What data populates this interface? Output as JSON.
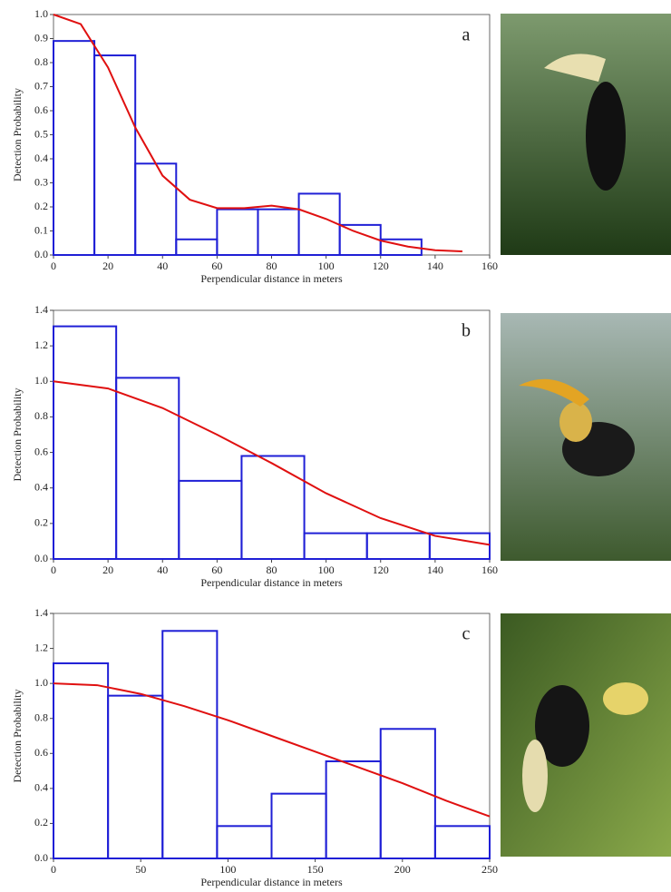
{
  "chart_data": [
    {
      "type": "histogram",
      "label": "a",
      "bins": [
        0,
        15,
        30,
        45,
        60,
        75,
        90,
        105,
        120,
        135,
        150
      ],
      "values": [
        0.89,
        0.83,
        0.38,
        0.065,
        0.19,
        0.19,
        0.255,
        0.125,
        0.065,
        0
      ],
      "color": "#1f1fd6",
      "line": {
        "x": [
          0,
          10,
          20,
          30,
          40,
          50,
          60,
          70,
          80,
          90,
          100,
          110,
          120,
          130,
          140,
          150
        ],
        "values": [
          1.0,
          0.96,
          0.78,
          0.53,
          0.33,
          0.23,
          0.195,
          0.195,
          0.205,
          0.19,
          0.15,
          0.1,
          0.06,
          0.035,
          0.02,
          0.015
        ],
        "color": "#e01010"
      },
      "xlim": [
        0,
        160
      ],
      "ylim": [
        0,
        1
      ],
      "xticks": [
        0,
        20,
        40,
        60,
        80,
        100,
        120,
        140,
        160
      ],
      "yticks": [
        {
          "value": 0,
          "label": "0.0"
        },
        0.1,
        0.2,
        0.3,
        0.4,
        0.5,
        0.6,
        0.7,
        0.8,
        0.9,
        {
          "value": 1,
          "label": "1.0"
        }
      ],
      "x_label": "Perpendicular distance in meters",
      "y_label": "Detection Probability"
    },
    {
      "type": "histogram",
      "label": "b",
      "bins": [
        0,
        23,
        46,
        69,
        92,
        115,
        138,
        160
      ],
      "values": [
        1.31,
        1.02,
        0.44,
        0.58,
        0.145,
        0.145,
        0.145
      ],
      "color": "#1f1fd6",
      "line": {
        "x": [
          0,
          20,
          40,
          60,
          80,
          100,
          120,
          140,
          160
        ],
        "values": [
          1.0,
          0.96,
          0.85,
          0.7,
          0.54,
          0.37,
          0.23,
          0.13,
          0.08
        ],
        "color": "#e01010"
      },
      "xlim": [
        0,
        160
      ],
      "ylim": [
        0,
        1.4
      ],
      "xticks": [
        0,
        20,
        40,
        60,
        80,
        100,
        120,
        140,
        160
      ],
      "yticks": [
        {
          "value": 0,
          "label": "0.0"
        },
        0.2,
        0.4,
        0.6,
        0.8,
        {
          "value": 1,
          "label": "1.0"
        },
        1.2,
        1.4
      ],
      "x_label": "Perpendicular distance in meters",
      "y_label": "Detection Probability"
    },
    {
      "type": "histogram",
      "label": "c",
      "bins": [
        0,
        31.25,
        62.5,
        93.75,
        125,
        156.25,
        187.5,
        218.75,
        250
      ],
      "values": [
        1.115,
        0.93,
        1.3,
        0.185,
        0.37,
        0.555,
        0.74,
        0.185
      ],
      "color": "#1f1fd6",
      "line": {
        "x": [
          0,
          25,
          50,
          75,
          100,
          125,
          150,
          175,
          200,
          225,
          250
        ],
        "values": [
          1.0,
          0.99,
          0.94,
          0.87,
          0.79,
          0.7,
          0.61,
          0.52,
          0.43,
          0.33,
          0.24
        ],
        "color": "#e01010"
      },
      "xlim": [
        0,
        250
      ],
      "ylim": [
        0,
        1.4
      ],
      "xticks": [
        0,
        50,
        100,
        150,
        200,
        250
      ],
      "yticks": [
        {
          "value": 0,
          "label": "0.0"
        },
        0.2,
        0.4,
        0.6,
        0.8,
        {
          "value": 1,
          "label": "1.0"
        },
        1.2,
        1.4
      ],
      "x_label": "Perpendicular distance in meters",
      "y_label": "Detection Probability"
    }
  ]
}
